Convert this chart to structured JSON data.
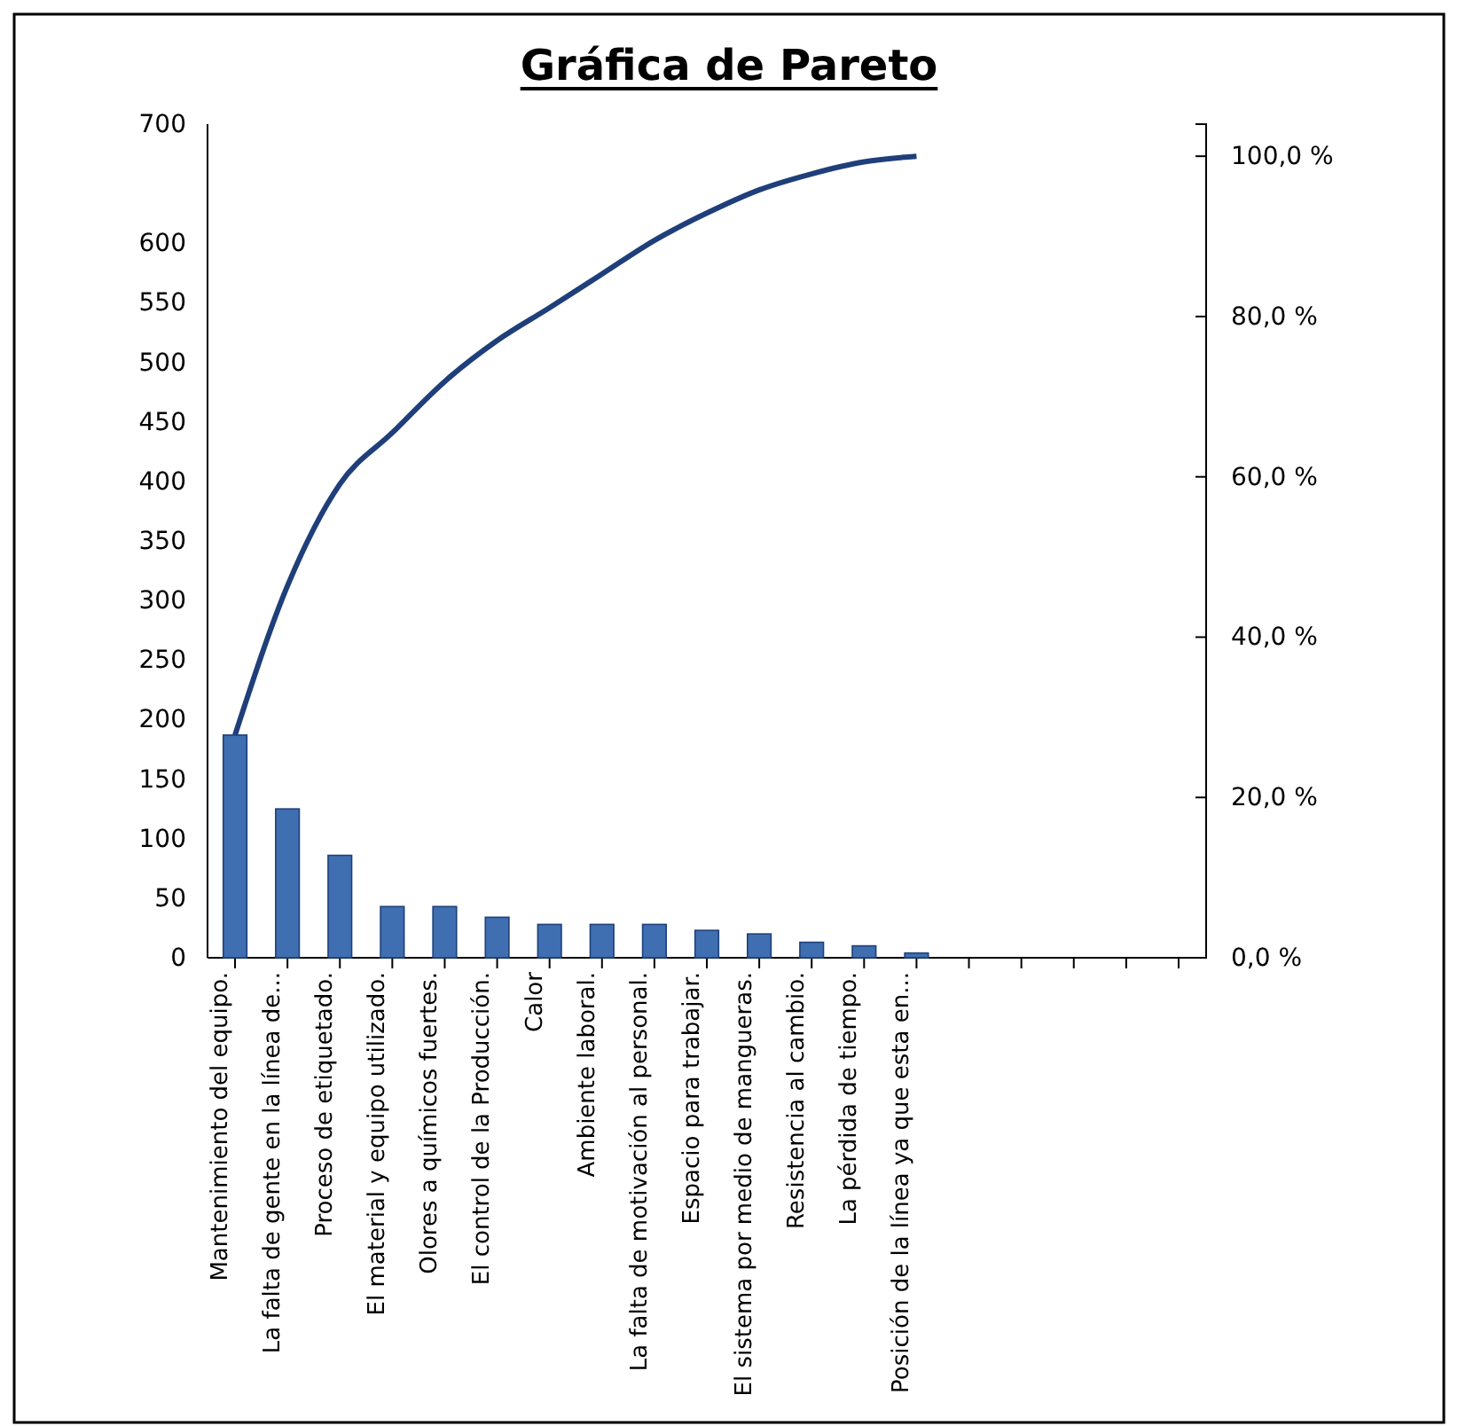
{
  "chart_data": {
    "type": "bar",
    "title": "Gráfica de Pareto",
    "categories": [
      "Mantenimiento del equipo.",
      "La falta de gente en la línea de...",
      "Proceso de etiquetado.",
      "El material y equipo utilizado.",
      "Olores a químicos fuertes.",
      "El control de la Producción.",
      "Calor",
      "Ambiente laboral.",
      "La falta de motivación al personal.",
      "Espacio para trabajar.",
      "El sistema por medio de mangueras.",
      "Resistencia al cambio.",
      "La pérdida de tiempo.",
      "Posición de la línea ya que esta en...",
      null,
      null,
      null,
      null,
      null
    ],
    "series": [
      {
        "color": "#3f6fb0",
        "values": [
          187,
          125,
          86,
          43,
          43,
          34,
          28,
          28,
          28,
          23,
          20,
          13,
          10,
          4,
          null,
          null,
          null,
          null,
          null
        ]
      },
      {
        "type": "line",
        "axis": "y2",
        "color": "#1f3f7a",
        "values": [
          27.8,
          46.4,
          59.1,
          65.5,
          71.9,
          77.0,
          81.1,
          85.3,
          89.5,
          92.9,
          95.8,
          97.8,
          99.3,
          100,
          null,
          null,
          null,
          null,
          null
        ]
      }
    ],
    "ylim": [
      0,
      700
    ],
    "yticks": [
      0,
      50,
      100,
      150,
      200,
      250,
      300,
      350,
      400,
      450,
      500,
      550,
      600,
      700
    ],
    "y2lim": [
      0,
      104
    ],
    "y2ticks": [
      {
        "value": 0,
        "label": "0,0 %"
      },
      {
        "value": 20,
        "label": "20,0 %"
      },
      {
        "value": 40,
        "label": "40,0 %"
      },
      {
        "value": 60,
        "label": "60,0 %"
      },
      {
        "value": 80,
        "label": "80,0 %"
      },
      {
        "value": 100,
        "label": "100,0 %"
      }
    ],
    "grid": false,
    "marker": "none"
  }
}
